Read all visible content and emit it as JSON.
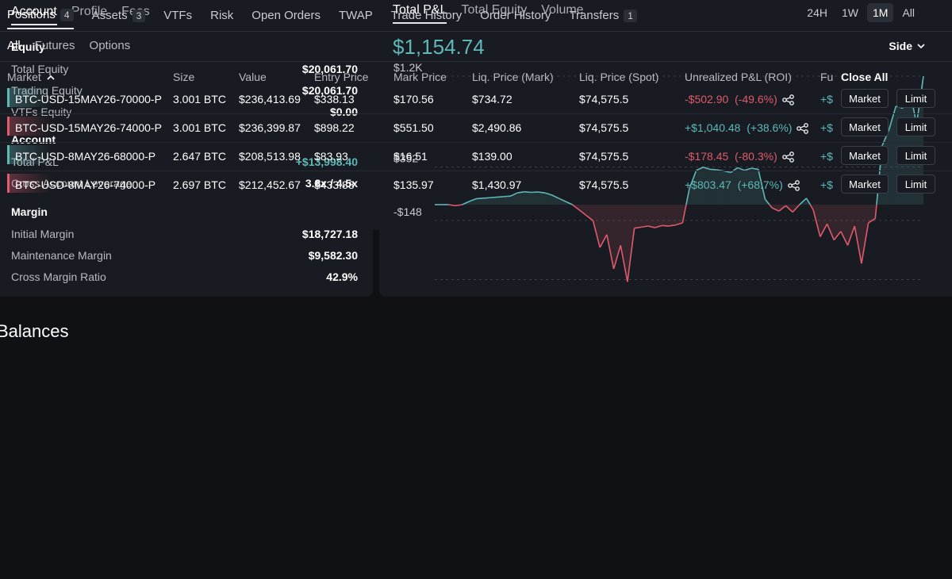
{
  "account_tabs": [
    "Account",
    "Profile",
    "Fees"
  ],
  "equity": {
    "title": "Equity",
    "rows": [
      {
        "label": "Total Equity",
        "value": "$20,061.70"
      },
      {
        "label": "Trading Equity",
        "value": "$20,061.70"
      },
      {
        "label": "VTFs Equity",
        "value": "$0.00"
      }
    ]
  },
  "account": {
    "title": "Account",
    "rows": [
      {
        "label": "Total P&L",
        "value": "+$13,998.40"
      },
      {
        "label": "Cross Account Leverage",
        "value": "3.8x / 4.5x"
      }
    ]
  },
  "margin": {
    "title": "Margin",
    "rows": [
      {
        "label": "Initial Margin",
        "value": "$18,727.18"
      },
      {
        "label": "Maintenance Margin",
        "value": "$9,582.30"
      },
      {
        "label": "Cross Margin Ratio",
        "value": "42.9%"
      }
    ]
  },
  "chart_tabs": [
    "Total P&L",
    "Total Equity",
    "Volume"
  ],
  "range_tabs": [
    "24H",
    "1W",
    "1M",
    "All"
  ],
  "chart_value": "$1,154.74",
  "colors": {
    "positive": "#5fb8b8",
    "negative": "#e05b6c",
    "background": "#0f1115",
    "panel": "#181b21"
  },
  "chart_data": {
    "type": "area",
    "ytick_labels": [
      "$1.2K",
      "$352",
      "-$148"
    ],
    "ytick_values": [
      1200,
      352,
      -148
    ],
    "baseline": 0,
    "ylim": [
      -700,
      1200
    ],
    "values": [
      0,
      0,
      0,
      -10,
      0,
      30,
      55,
      60,
      65,
      70,
      75,
      80,
      110,
      120,
      115,
      118,
      110,
      90,
      60,
      30,
      0,
      -50,
      -100,
      -150,
      -400,
      -280,
      -600,
      -380,
      -720,
      -220,
      -210,
      -200,
      -215,
      -195,
      -200,
      -190,
      -170,
      150,
      320,
      350,
      330,
      325,
      315,
      300,
      345,
      320,
      340,
      330,
      50,
      -30,
      -60,
      -10,
      -70,
      0,
      60,
      -50,
      -300,
      -180,
      -330,
      -250,
      -380,
      -200,
      -550,
      -170,
      -130,
      550,
      700,
      920,
      900,
      1080,
      750,
      1200
    ],
    "title": "",
    "xlabel": "",
    "ylabel": "",
    "grid": true
  },
  "balances_title": "Balances",
  "position_tabs": [
    {
      "label": "Positions",
      "badge": "4"
    },
    {
      "label": "Assets",
      "badge": "3"
    },
    {
      "label": "VTFs",
      "badge": ""
    },
    {
      "label": "Risk",
      "badge": ""
    },
    {
      "label": "Open Orders",
      "badge": ""
    },
    {
      "label": "TWAP",
      "badge": ""
    },
    {
      "label": "Trade History",
      "badge": ""
    },
    {
      "label": "Order History",
      "badge": ""
    },
    {
      "label": "Transfers",
      "badge": "1"
    }
  ],
  "sub_tabs": [
    "All",
    "Futures",
    "Options"
  ],
  "side_label": "Side",
  "columns": {
    "market": "Market",
    "size": "Size",
    "value": "Value",
    "entry": "Entry Price",
    "mark": "Mark Price",
    "liq_mark": "Liq. Price (Mark)",
    "liq_spot": "Liq. Price (Spot)",
    "upnl": "Unrealized P&L (ROI)",
    "funding": "Fu",
    "close_all": "Close All"
  },
  "positions": [
    {
      "market": "BTC-USD-15MAY26-70000-P",
      "side": "long",
      "size": "3.001 BTC",
      "value": "$236,413.69",
      "entry": "$338.13",
      "mark": "$170.56",
      "liq_mark": "$734.72",
      "liq_spot": "$74,575.5",
      "pnl": "-$502.90",
      "roi": "(-49.6%)",
      "pnl_sign": "neg",
      "funding": "+$",
      "market_btn": "Market",
      "limit_btn": "Limit"
    },
    {
      "market": "BTC-USD-15MAY26-74000-P",
      "side": "short",
      "size": "3.001 BTC",
      "value": "$236,399.87",
      "entry": "$898.22",
      "mark": "$551.50",
      "liq_mark": "$2,490.86",
      "liq_spot": "$74,575.5",
      "pnl": "+$1,040.48",
      "roi": "(+38.6%)",
      "pnl_sign": "pos",
      "funding": "+$",
      "market_btn": "Market",
      "limit_btn": "Limit"
    },
    {
      "market": "BTC-USD-8MAY26-68000-P",
      "side": "long",
      "size": "2.647 BTC",
      "value": "$208,513.98",
      "entry": "$83.93",
      "mark": "$16.51",
      "liq_mark": "$139.00",
      "liq_spot": "$74,575.5",
      "pnl": "-$178.45",
      "roi": "(-80.3%)",
      "pnl_sign": "neg",
      "funding": "+$",
      "market_btn": "Market",
      "limit_btn": "Limit"
    },
    {
      "market": "BTC-USD-8MAY26-74000-P",
      "side": "short",
      "size": "2.697 BTC",
      "value": "$212,452.67",
      "entry": "$433.88",
      "mark": "$135.97",
      "liq_mark": "$1,430.97",
      "liq_spot": "$74,575.5",
      "pnl": "+$803.47",
      "roi": "(+68.7%)",
      "pnl_sign": "pos",
      "funding": "+$",
      "market_btn": "Market",
      "limit_btn": "Limit"
    }
  ]
}
